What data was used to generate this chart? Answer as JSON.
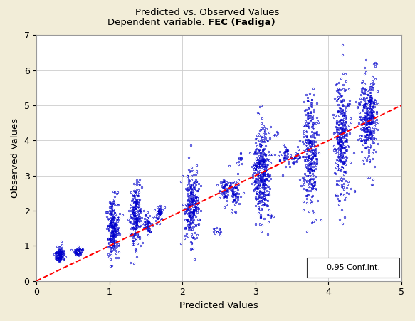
{
  "title_line1": "Predicted vs. Observed Values",
  "title_line2_plain": "Dependent variable: ",
  "title_line2_bold": "FEC (Fadiga)",
  "xlabel": "Predicted Values",
  "ylabel": "Observed Values",
  "xlim": [
    0,
    5
  ],
  "ylim": [
    0,
    7
  ],
  "xticks": [
    0,
    1,
    2,
    3,
    4,
    5
  ],
  "yticks": [
    0,
    1,
    2,
    3,
    4,
    5,
    6,
    7
  ],
  "background_color": "#F2EDD8",
  "plot_bg_color": "#FFFFFF",
  "dot_color": "#0000CC",
  "line_color": "#FF0000",
  "legend_text": "0,95 Conf.Int.",
  "clusters": [
    {
      "x_center": 0.32,
      "y_center": 0.75,
      "x_spread": 0.03,
      "y_spread": 0.1,
      "n": 120
    },
    {
      "x_center": 0.57,
      "y_center": 0.83,
      "x_spread": 0.03,
      "y_spread": 0.08,
      "n": 50
    },
    {
      "x_center": 1.05,
      "y_center": 1.5,
      "x_spread": 0.04,
      "y_spread": 0.4,
      "n": 220
    },
    {
      "x_center": 1.35,
      "y_center": 1.8,
      "x_spread": 0.04,
      "y_spread": 0.45,
      "n": 200
    },
    {
      "x_center": 1.52,
      "y_center": 1.62,
      "x_spread": 0.03,
      "y_spread": 0.15,
      "n": 50
    },
    {
      "x_center": 1.68,
      "y_center": 1.95,
      "x_spread": 0.03,
      "y_spread": 0.12,
      "n": 40
    },
    {
      "x_center": 2.12,
      "y_center": 2.1,
      "x_spread": 0.05,
      "y_spread": 0.55,
      "n": 250
    },
    {
      "x_center": 2.48,
      "y_center": 1.42,
      "x_spread": 0.03,
      "y_spread": 0.06,
      "n": 12
    },
    {
      "x_center": 2.58,
      "y_center": 2.58,
      "x_spread": 0.04,
      "y_spread": 0.22,
      "n": 60
    },
    {
      "x_center": 2.72,
      "y_center": 2.52,
      "x_spread": 0.04,
      "y_spread": 0.22,
      "n": 60
    },
    {
      "x_center": 2.78,
      "y_center": 3.48,
      "x_spread": 0.03,
      "y_spread": 0.1,
      "n": 12
    },
    {
      "x_center": 3.08,
      "y_center": 3.05,
      "x_spread": 0.06,
      "y_spread": 0.65,
      "n": 350
    },
    {
      "x_center": 3.22,
      "y_center": 1.85,
      "x_spread": 0.03,
      "y_spread": 0.04,
      "n": 6
    },
    {
      "x_center": 3.28,
      "y_center": 4.18,
      "x_spread": 0.03,
      "y_spread": 0.05,
      "n": 5
    },
    {
      "x_center": 3.42,
      "y_center": 3.55,
      "x_spread": 0.04,
      "y_spread": 0.18,
      "n": 40
    },
    {
      "x_center": 3.55,
      "y_center": 3.5,
      "x_spread": 0.03,
      "y_spread": 0.1,
      "n": 25
    },
    {
      "x_center": 3.75,
      "y_center": 3.6,
      "x_spread": 0.05,
      "y_spread": 0.75,
      "n": 280
    },
    {
      "x_center": 3.82,
      "y_center": 4.5,
      "x_spread": 0.03,
      "y_spread": 0.05,
      "n": 5
    },
    {
      "x_center": 3.83,
      "y_center": 4.22,
      "x_spread": 0.03,
      "y_spread": 0.05,
      "n": 5
    },
    {
      "x_center": 4.18,
      "y_center": 4.05,
      "x_spread": 0.05,
      "y_spread": 0.85,
      "n": 300
    },
    {
      "x_center": 4.28,
      "y_center": 5.02,
      "x_spread": 0.03,
      "y_spread": 0.05,
      "n": 6
    },
    {
      "x_center": 4.32,
      "y_center": 2.62,
      "x_spread": 0.03,
      "y_spread": 0.04,
      "n": 5
    },
    {
      "x_center": 4.55,
      "y_center": 4.65,
      "x_spread": 0.06,
      "y_spread": 0.6,
      "n": 320
    },
    {
      "x_center": 4.62,
      "y_center": 6.2,
      "x_spread": 0.03,
      "y_spread": 0.04,
      "n": 4
    }
  ],
  "line_x": [
    0,
    5
  ],
  "line_y": [
    0,
    5
  ]
}
